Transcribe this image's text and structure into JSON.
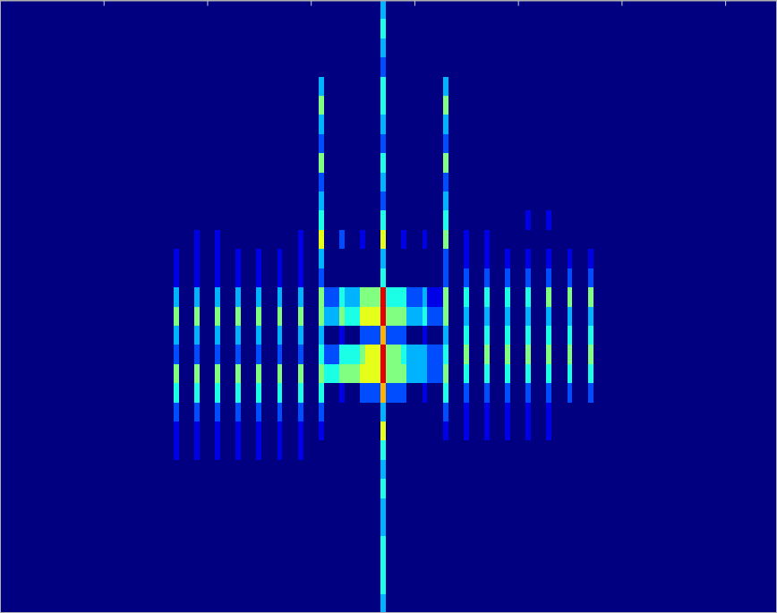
{
  "chart_data": {
    "type": "heatmap",
    "xlim": [
      0,
      7.5
    ],
    "xticks": [
      1,
      2,
      3,
      4,
      5,
      6,
      7
    ],
    "ylim": [
      32,
      0
    ],
    "tick_labels": false,
    "zlim": [
      0,
      10
    ],
    "x": [
      1.7,
      1.8,
      1.9,
      2.0,
      2.1,
      2.2,
      2.3,
      2.4,
      2.5,
      2.6,
      2.7,
      2.8,
      2.9,
      3.0,
      3.1,
      3.2,
      3.3,
      3.4,
      3.5,
      3.6,
      3.7,
      3.8,
      3.9,
      4.0,
      4.1,
      4.2,
      4.3,
      4.4,
      4.5,
      4.6,
      4.7,
      4.8,
      4.9,
      5.0,
      5.1,
      5.2,
      5.3,
      5.4,
      5.5,
      5.6,
      5.7
    ],
    "y": [
      0.5,
      1.5,
      2.5,
      3.5,
      4.5,
      5.5,
      6.5,
      7.5,
      8.5,
      9.5,
      10.5,
      11.5,
      12.5,
      13.5,
      14.5,
      15.5,
      16.5,
      17.5,
      18.5,
      19.5,
      20.5,
      21.5,
      22.5,
      23.5,
      24.5,
      25.5,
      26.5,
      27.5,
      28.5,
      29.5,
      30.5,
      31.5
    ],
    "z": [
      [
        0,
        0,
        0,
        0,
        0,
        0,
        0,
        0,
        0,
        0,
        0,
        0,
        0,
        0,
        0,
        0,
        0,
        0,
        0,
        0,
        3,
        0,
        0,
        0,
        0,
        0,
        0,
        0,
        0,
        0,
        0,
        0,
        0,
        0,
        0,
        0,
        0,
        0,
        0,
        0,
        0
      ],
      [
        0,
        0,
        0,
        0,
        0,
        0,
        0,
        0,
        0,
        0,
        0,
        0,
        0,
        0,
        0,
        0,
        0,
        0,
        0,
        0,
        4,
        0,
        0,
        0,
        0,
        0,
        0,
        0,
        0,
        0,
        0,
        0,
        0,
        0,
        0,
        0,
        0,
        0,
        0,
        0,
        0
      ],
      [
        0,
        0,
        0,
        0,
        0,
        0,
        0,
        0,
        0,
        0,
        0,
        0,
        0,
        0,
        0,
        0,
        0,
        0,
        0,
        0,
        3,
        0,
        0,
        0,
        0,
        0,
        0,
        0,
        0,
        0,
        0,
        0,
        0,
        0,
        0,
        0,
        0,
        0,
        0,
        0,
        0
      ],
      [
        0,
        0,
        0,
        0,
        0,
        0,
        0,
        0,
        0,
        0,
        0,
        0,
        0,
        0,
        0,
        0,
        0,
        0,
        0,
        0,
        2,
        0,
        0,
        0,
        0,
        0,
        0,
        0,
        0,
        0,
        0,
        0,
        0,
        0,
        0,
        0,
        0,
        0,
        0,
        0,
        0
      ],
      [
        0,
        0,
        0,
        0,
        0,
        0,
        0,
        0,
        0,
        0,
        0,
        0,
        0,
        0,
        3,
        0,
        0,
        0,
        0,
        0,
        4,
        0,
        0,
        0,
        0,
        0,
        3,
        0,
        0,
        0,
        0,
        0,
        0,
        0,
        0,
        0,
        0,
        0,
        0,
        0,
        0
      ],
      [
        0,
        0,
        0,
        0,
        0,
        0,
        0,
        0,
        0,
        0,
        0,
        0,
        0,
        0,
        5,
        0,
        0,
        0,
        0,
        0,
        4,
        0,
        0,
        0,
        0,
        0,
        5,
        0,
        0,
        0,
        0,
        0,
        0,
        0,
        0,
        0,
        0,
        0,
        0,
        0,
        0
      ],
      [
        0,
        0,
        0,
        0,
        0,
        0,
        0,
        0,
        0,
        0,
        0,
        0,
        0,
        0,
        3,
        0,
        0,
        0,
        0,
        0,
        3,
        0,
        0,
        0,
        0,
        0,
        3,
        0,
        0,
        0,
        0,
        0,
        0,
        0,
        0,
        0,
        0,
        0,
        0,
        0,
        0
      ],
      [
        0,
        0,
        0,
        0,
        0,
        0,
        0,
        0,
        0,
        0,
        0,
        0,
        0,
        0,
        2,
        0,
        0,
        0,
        0,
        0,
        2,
        0,
        0,
        0,
        0,
        0,
        2,
        0,
        0,
        0,
        0,
        0,
        0,
        0,
        0,
        0,
        0,
        0,
        0,
        0,
        0
      ],
      [
        0,
        0,
        0,
        0,
        0,
        0,
        0,
        0,
        0,
        0,
        0,
        0,
        0,
        0,
        5,
        0,
        0,
        0,
        0,
        0,
        4,
        0,
        0,
        0,
        0,
        0,
        5,
        0,
        0,
        0,
        0,
        0,
        0,
        0,
        0,
        0,
        0,
        0,
        0,
        0,
        0
      ],
      [
        0,
        0,
        0,
        0,
        0,
        0,
        0,
        0,
        0,
        0,
        0,
        0,
        0,
        0,
        2,
        0,
        0,
        0,
        0,
        0,
        3,
        0,
        0,
        0,
        0,
        0,
        2,
        0,
        0,
        0,
        0,
        0,
        0,
        0,
        0,
        0,
        0,
        0,
        0,
        0,
        0
      ],
      [
        0,
        0,
        0,
        0,
        0,
        0,
        0,
        0,
        0,
        0,
        0,
        0,
        0,
        0,
        3,
        0,
        0,
        0,
        0,
        0,
        2,
        0,
        0,
        0,
        0,
        0,
        3,
        0,
        0,
        0,
        0,
        0,
        0,
        0,
        0,
        0,
        0,
        0,
        0,
        0,
        0
      ],
      [
        0,
        0,
        0,
        0,
        0,
        0,
        0,
        0,
        0,
        0,
        0,
        0,
        0,
        0,
        4,
        0,
        0,
        0,
        0,
        0,
        4,
        0,
        0,
        0,
        0,
        0,
        4,
        0,
        0,
        0,
        0,
        0,
        0,
        0,
        1,
        0,
        1,
        0,
        0,
        0,
        0
      ],
      [
        0,
        0,
        1,
        0,
        1,
        0,
        0,
        0,
        0,
        0,
        0,
        0,
        1,
        0,
        6,
        0,
        2,
        0,
        1,
        0,
        6,
        0,
        1,
        0,
        1,
        0,
        5,
        0,
        1,
        0,
        1,
        0,
        0,
        0,
        0,
        0,
        0,
        0,
        0,
        0,
        0
      ],
      [
        1,
        0,
        1,
        0,
        1,
        0,
        1,
        0,
        1,
        0,
        1,
        0,
        1,
        0,
        3,
        0,
        0,
        0,
        0,
        0,
        3,
        0,
        0,
        0,
        0,
        0,
        2,
        0,
        1,
        0,
        1,
        0,
        1,
        0,
        1,
        0,
        1,
        0,
        1,
        0,
        1
      ],
      [
        1,
        0,
        1,
        0,
        1,
        0,
        1,
        0,
        1,
        0,
        1,
        0,
        1,
        0,
        2,
        0,
        0,
        0,
        0,
        0,
        4,
        0,
        0,
        0,
        0,
        0,
        2,
        0,
        2,
        0,
        2,
        0,
        2,
        0,
        2,
        0,
        2,
        0,
        2,
        0,
        2
      ],
      [
        3,
        0,
        3,
        0,
        3,
        0,
        3,
        0,
        3,
        0,
        3,
        0,
        3,
        0,
        5,
        2,
        4,
        3,
        5,
        5,
        9,
        4,
        4,
        2,
        3,
        1,
        5,
        0,
        4,
        0,
        4,
        0,
        4,
        0,
        4,
        0,
        5,
        0,
        5,
        0,
        5
      ],
      [
        5,
        0,
        5,
        0,
        5,
        0,
        5,
        0,
        5,
        0,
        5,
        0,
        5,
        0,
        5,
        3,
        5,
        4,
        6,
        6,
        9,
        5,
        5,
        3,
        4,
        2,
        5,
        0,
        3,
        0,
        3,
        0,
        3,
        0,
        3,
        0,
        3,
        0,
        3,
        0,
        3
      ],
      [
        3,
        0,
        3,
        0,
        3,
        0,
        3,
        0,
        3,
        0,
        3,
        0,
        3,
        0,
        3,
        0,
        1,
        0,
        2,
        2,
        7,
        2,
        2,
        0,
        1,
        0,
        3,
        0,
        4,
        0,
        4,
        0,
        4,
        0,
        4,
        0,
        4,
        0,
        4,
        0,
        4
      ],
      [
        2,
        0,
        2,
        0,
        2,
        0,
        2,
        0,
        2,
        0,
        2,
        0,
        2,
        0,
        4,
        2,
        4,
        4,
        5,
        6,
        9,
        5,
        4,
        3,
        3,
        2,
        4,
        0,
        5,
        0,
        5,
        0,
        5,
        0,
        5,
        0,
        5,
        0,
        5,
        0,
        5
      ],
      [
        5,
        0,
        5,
        0,
        5,
        0,
        5,
        0,
        5,
        0,
        5,
        0,
        5,
        0,
        5,
        4,
        5,
        5,
        6,
        6,
        9,
        5,
        5,
        3,
        3,
        2,
        5,
        0,
        4,
        0,
        4,
        0,
        4,
        0,
        4,
        0,
        4,
        0,
        4,
        0,
        4
      ],
      [
        4,
        0,
        4,
        0,
        4,
        0,
        4,
        0,
        4,
        0,
        4,
        0,
        4,
        0,
        4,
        0,
        1,
        0,
        2,
        2,
        7,
        2,
        2,
        0,
        1,
        0,
        4,
        0,
        2,
        0,
        2,
        0,
        2,
        0,
        2,
        0,
        2,
        0,
        2,
        0,
        2
      ],
      [
        2,
        0,
        2,
        0,
        2,
        0,
        2,
        0,
        2,
        0,
        2,
        0,
        2,
        0,
        2,
        0,
        0,
        0,
        0,
        0,
        3,
        0,
        0,
        0,
        0,
        0,
        2,
        0,
        1,
        0,
        1,
        0,
        1,
        0,
        1,
        0,
        1,
        0,
        0,
        0,
        0
      ],
      [
        1,
        0,
        1,
        0,
        1,
        0,
        1,
        0,
        1,
        0,
        1,
        0,
        1,
        0,
        1,
        0,
        0,
        0,
        0,
        0,
        6,
        0,
        0,
        0,
        0,
        0,
        1,
        0,
        1,
        0,
        1,
        0,
        1,
        0,
        1,
        0,
        1,
        0,
        0,
        0,
        0
      ],
      [
        1,
        0,
        1,
        0,
        1,
        0,
        1,
        0,
        1,
        0,
        1,
        0,
        1,
        0,
        0,
        0,
        0,
        0,
        0,
        0,
        4,
        0,
        0,
        0,
        0,
        0,
        0,
        0,
        0,
        0,
        0,
        0,
        0,
        0,
        0,
        0,
        0,
        0,
        0,
        0,
        0
      ],
      [
        0,
        0,
        0,
        0,
        0,
        0,
        0,
        0,
        0,
        0,
        0,
        0,
        0,
        0,
        0,
        0,
        0,
        0,
        0,
        0,
        3,
        0,
        0,
        0,
        0,
        0,
        0,
        0,
        0,
        0,
        0,
        0,
        0,
        0,
        0,
        0,
        0,
        0,
        0,
        0,
        0
      ],
      [
        0,
        0,
        0,
        0,
        0,
        0,
        0,
        0,
        0,
        0,
        0,
        0,
        0,
        0,
        0,
        0,
        0,
        0,
        0,
        0,
        4,
        0,
        0,
        0,
        0,
        0,
        0,
        0,
        0,
        0,
        0,
        0,
        0,
        0,
        0,
        0,
        0,
        0,
        0,
        0,
        0
      ],
      [
        0,
        0,
        0,
        0,
        0,
        0,
        0,
        0,
        0,
        0,
        0,
        0,
        0,
        0,
        0,
        0,
        0,
        0,
        0,
        0,
        3,
        0,
        0,
        0,
        0,
        0,
        0,
        0,
        0,
        0,
        0,
        0,
        0,
        0,
        0,
        0,
        0,
        0,
        0,
        0,
        0
      ],
      [
        0,
        0,
        0,
        0,
        0,
        0,
        0,
        0,
        0,
        0,
        0,
        0,
        0,
        0,
        0,
        0,
        0,
        0,
        0,
        0,
        3,
        0,
        0,
        0,
        0,
        0,
        0,
        0,
        0,
        0,
        0,
        0,
        0,
        0,
        0,
        0,
        0,
        0,
        0,
        0,
        0
      ],
      [
        0,
        0,
        0,
        0,
        0,
        0,
        0,
        0,
        0,
        0,
        0,
        0,
        0,
        0,
        0,
        0,
        0,
        0,
        0,
        0,
        4,
        0,
        0,
        0,
        0,
        0,
        0,
        0,
        0,
        0,
        0,
        0,
        0,
        0,
        0,
        0,
        0,
        0,
        0,
        0,
        0
      ],
      [
        0,
        0,
        0,
        0,
        0,
        0,
        0,
        0,
        0,
        0,
        0,
        0,
        0,
        0,
        0,
        0,
        0,
        0,
        0,
        0,
        4,
        0,
        0,
        0,
        0,
        0,
        0,
        0,
        0,
        0,
        0,
        0,
        0,
        0,
        0,
        0,
        0,
        0,
        0,
        0,
        0
      ],
      [
        0,
        0,
        0,
        0,
        0,
        0,
        0,
        0,
        0,
        0,
        0,
        0,
        0,
        0,
        0,
        0,
        0,
        0,
        0,
        0,
        4,
        0,
        0,
        0,
        0,
        0,
        0,
        0,
        0,
        0,
        0,
        0,
        0,
        0,
        0,
        0,
        0,
        0,
        0,
        0,
        0
      ],
      [
        0,
        0,
        0,
        0,
        0,
        0,
        0,
        0,
        0,
        0,
        0,
        0,
        0,
        0,
        0,
        0,
        0,
        0,
        0,
        0,
        3,
        0,
        0,
        0,
        0,
        0,
        0,
        0,
        0,
        0,
        0,
        0,
        0,
        0,
        0,
        0,
        0,
        0,
        0,
        0,
        0
      ]
    ]
  }
}
